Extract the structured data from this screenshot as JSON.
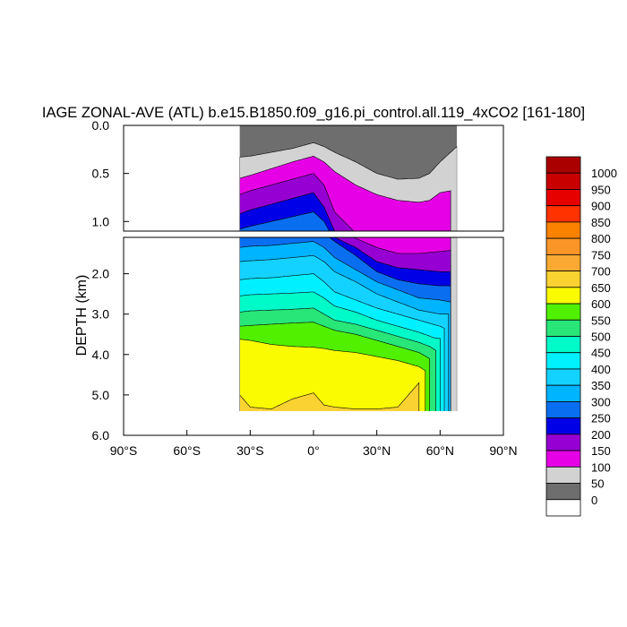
{
  "chart_data": {
    "type": "contour",
    "title": "IAGE ZONAL-AVE (ATL) b.e15.B1850.f09_g16.pi_control.all.119_4xCO2 [161-180]",
    "ylabel": "DEPTH (km)",
    "xlabel": "",
    "x_ticks": [
      "90°S",
      "60°S",
      "30°S",
      "0°",
      "30°N",
      "60°N",
      "90°N"
    ],
    "x_tick_values": [
      -90,
      -60,
      -30,
      0,
      30,
      60,
      90
    ],
    "xlim": [
      -90,
      90
    ],
    "y_ticks_upper": [
      "0.0",
      "0.5",
      "1.0"
    ],
    "y_tick_values_upper": [
      0,
      0.5,
      1.0
    ],
    "ylim_upper": [
      0,
      1.1
    ],
    "y_ticks_lower": [
      "2.0",
      "3.0",
      "4.0",
      "5.0",
      "6.0"
    ],
    "y_tick_values_lower": [
      2,
      3,
      4,
      5,
      6
    ],
    "ylim_lower": [
      1.1,
      6.0
    ],
    "colorbar_levels": [
      "1000",
      "950",
      "900",
      "850",
      "800",
      "750",
      "700",
      "650",
      "600",
      "550",
      "500",
      "450",
      "400",
      "350",
      "300",
      "250",
      "200",
      "150",
      "100",
      "50",
      "0"
    ],
    "colors": [
      "#ffffff",
      "#6e6e6e",
      "#d2d2d2",
      "#e600e6",
      "#9600d2",
      "#0000e6",
      "#0a6ef0",
      "#00b4ff",
      "#14d2ff",
      "#00f0ff",
      "#00fac8",
      "#28e678",
      "#50f000",
      "#fafa00",
      "#fad232",
      "#faaa32",
      "#fa9628",
      "#fa8200",
      "#ff3200",
      "#e60000",
      "#c80000",
      "#aa0000"
    ],
    "contour_bands": [
      {
        "level": 50,
        "lat": [
          -35,
          -30,
          -20,
          -10,
          0,
          5,
          10,
          20,
          30,
          40,
          50,
          55,
          60,
          65,
          68
        ],
        "depth": [
          0.33,
          0.32,
          0.28,
          0.24,
          0.18,
          0.22,
          0.28,
          0.38,
          0.5,
          0.56,
          0.55,
          0.5,
          0.38,
          0.28,
          0.22
        ]
      },
      {
        "level": 100,
        "lat": [
          -35,
          -30,
          -20,
          -10,
          0,
          5,
          10,
          20,
          30,
          40,
          50,
          55,
          60,
          65
        ],
        "depth": [
          0.55,
          0.52,
          0.45,
          0.38,
          0.32,
          0.38,
          0.48,
          0.62,
          0.72,
          0.78,
          0.8,
          0.78,
          0.7,
          0.68
        ]
      },
      {
        "level": 150,
        "lat": [
          -35,
          -30,
          -20,
          -10,
          0,
          5,
          10,
          20,
          30,
          40,
          50,
          60,
          65
        ],
        "depth": [
          0.72,
          0.68,
          0.62,
          0.56,
          0.5,
          0.62,
          0.9,
          1.12,
          1.35,
          1.5,
          1.5,
          1.45,
          1.42
        ]
      },
      {
        "level": 200,
        "lat": [
          -35,
          -30,
          -20,
          -10,
          0,
          5,
          10,
          20,
          30,
          40,
          50,
          60,
          65
        ],
        "depth": [
          0.92,
          0.88,
          0.82,
          0.76,
          0.7,
          0.85,
          1.1,
          1.35,
          1.7,
          1.85,
          1.9,
          1.95,
          1.95
        ]
      },
      {
        "level": 250,
        "lat": [
          -35,
          -30,
          -20,
          -10,
          0,
          5,
          10,
          20,
          30,
          40,
          50,
          60,
          65
        ],
        "depth": [
          1.08,
          1.05,
          1.0,
          0.95,
          0.9,
          1.0,
          1.2,
          1.55,
          1.95,
          2.15,
          2.25,
          2.3,
          2.3
        ]
      },
      {
        "level": 300,
        "lat": [
          -35,
          -30,
          -20,
          -10,
          0,
          5,
          10,
          20,
          30,
          40,
          50,
          60,
          65
        ],
        "depth": [
          1.35,
          1.32,
          1.3,
          1.25,
          1.2,
          1.35,
          1.6,
          1.9,
          2.2,
          2.4,
          2.6,
          2.65,
          2.7
        ]
      },
      {
        "level": 350,
        "lat": [
          -35,
          -30,
          -20,
          -10,
          0,
          5,
          10,
          20,
          30,
          40,
          50,
          60,
          64
        ],
        "depth": [
          1.7,
          1.68,
          1.65,
          1.6,
          1.55,
          1.7,
          1.95,
          2.2,
          2.5,
          2.7,
          2.9,
          3.0,
          3.0
        ]
      },
      {
        "level": 400,
        "lat": [
          -35,
          -30,
          -20,
          -10,
          0,
          5,
          10,
          20,
          30,
          40,
          50,
          60,
          62
        ],
        "depth": [
          2.15,
          2.12,
          2.1,
          2.05,
          2.0,
          2.2,
          2.45,
          2.65,
          2.85,
          3.0,
          3.15,
          3.3,
          3.35
        ]
      },
      {
        "level": 450,
        "lat": [
          -35,
          -30,
          -20,
          -10,
          0,
          5,
          10,
          20,
          30,
          40,
          50,
          58,
          60
        ],
        "depth": [
          2.55,
          2.52,
          2.5,
          2.48,
          2.45,
          2.6,
          2.8,
          2.95,
          3.15,
          3.3,
          3.45,
          3.6,
          3.6
        ]
      },
      {
        "level": 500,
        "lat": [
          -35,
          -30,
          -20,
          -10,
          0,
          5,
          10,
          20,
          30,
          40,
          50,
          55,
          58
        ],
        "depth": [
          2.95,
          2.92,
          2.9,
          2.88,
          2.85,
          3.0,
          3.15,
          3.25,
          3.4,
          3.55,
          3.7,
          3.8,
          3.9
        ]
      },
      {
        "level": 550,
        "lat": [
          -35,
          -30,
          -20,
          -10,
          0,
          5,
          10,
          20,
          30,
          40,
          50,
          55
        ],
        "depth": [
          3.3,
          3.28,
          3.25,
          3.22,
          3.2,
          3.3,
          3.4,
          3.5,
          3.65,
          3.8,
          3.95,
          4.1
        ]
      },
      {
        "level": 600,
        "lat": [
          -35,
          -30,
          -20,
          -10,
          0,
          5,
          10,
          20,
          30,
          40,
          50,
          53
        ],
        "depth": [
          3.62,
          3.65,
          3.75,
          3.8,
          3.82,
          3.85,
          3.9,
          3.95,
          4.05,
          4.15,
          4.3,
          4.4
        ]
      },
      {
        "level": 650,
        "lat": [
          -35,
          -30,
          -20,
          -10,
          0,
          5,
          10,
          20,
          30,
          40,
          50
        ],
        "depth": [
          5.0,
          5.3,
          5.35,
          5.1,
          4.95,
          5.25,
          5.3,
          5.35,
          5.35,
          5.3,
          4.7
        ]
      }
    ],
    "data_extent": {
      "lat_min": -35,
      "lat_max": 68,
      "depth_bottom": 5.4
    }
  }
}
